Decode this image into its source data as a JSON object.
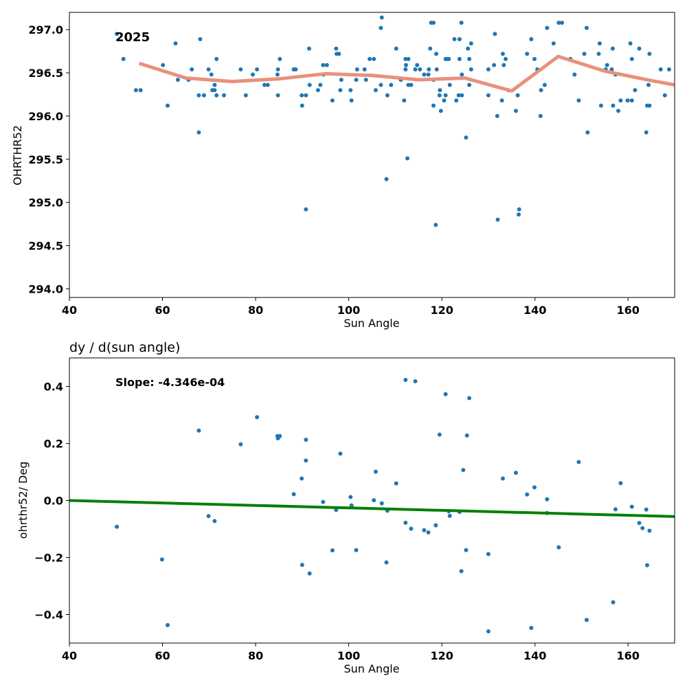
{
  "chart_data": [
    {
      "type": "scatter",
      "title": "",
      "annotation": "2025",
      "xlabel": "Sun Angle",
      "ylabel": "OHRTHR52",
      "xlim": [
        40,
        170
      ],
      "ylim": [
        293.9,
        297.2
      ],
      "xticks": [
        40,
        60,
        80,
        100,
        120,
        140,
        160
      ],
      "yticks": [
        294.0,
        294.5,
        295.0,
        295.5,
        296.0,
        296.5,
        297.0
      ],
      "grid": false,
      "series": [
        {
          "kind": "points",
          "color": "#1f77b4",
          "points": [
            [
              50.2,
              296.95
            ],
            [
              51.6,
              296.66
            ],
            [
              54.3,
              296.3
            ],
            [
              55.3,
              296.3
            ],
            [
              60.1,
              296.59
            ],
            [
              61.1,
              296.12
            ],
            [
              62.8,
              296.84
            ],
            [
              63.3,
              296.42
            ],
            [
              65.6,
              296.42
            ],
            [
              66.3,
              296.54
            ],
            [
              67.8,
              296.24
            ],
            [
              67.8,
              295.81
            ],
            [
              68.1,
              296.89
            ],
            [
              68.9,
              296.24
            ],
            [
              69.9,
              296.54
            ],
            [
              70.5,
              296.48
            ],
            [
              70.7,
              296.3
            ],
            [
              71.2,
              296.3
            ],
            [
              71.2,
              296.36
            ],
            [
              71.6,
              296.24
            ],
            [
              71.6,
              296.66
            ],
            [
              73.2,
              296.24
            ],
            [
              76.8,
              296.54
            ],
            [
              77.9,
              296.24
            ],
            [
              79.4,
              296.48
            ],
            [
              80.3,
              296.54
            ],
            [
              81.9,
              296.36
            ],
            [
              82.6,
              296.36
            ],
            [
              84.7,
              296.48
            ],
            [
              84.8,
              296.54
            ],
            [
              84.8,
              296.24
            ],
            [
              85.2,
              296.66
            ],
            [
              88.2,
              296.54
            ],
            [
              88.6,
              296.54
            ],
            [
              89.9,
              296.24
            ],
            [
              90.0,
              296.12
            ],
            [
              90.8,
              296.24
            ],
            [
              90.8,
              294.92
            ],
            [
              91.5,
              296.78
            ],
            [
              91.6,
              296.36
            ],
            [
              93.4,
              296.3
            ],
            [
              93.9,
              296.36
            ],
            [
              94.5,
              296.59
            ],
            [
              94.6,
              296.48
            ],
            [
              95.3,
              296.59
            ],
            [
              96.5,
              296.18
            ],
            [
              97.3,
              296.78
            ],
            [
              97.4,
              296.72
            ],
            [
              97.9,
              296.72
            ],
            [
              98.2,
              296.3
            ],
            [
              98.4,
              296.42
            ],
            [
              100.4,
              296.3
            ],
            [
              100.6,
              296.18
            ],
            [
              101.6,
              296.42
            ],
            [
              101.8,
              296.54
            ],
            [
              103.4,
              296.54
            ],
            [
              103.7,
              296.42
            ],
            [
              104.5,
              296.66
            ],
            [
              105.4,
              296.66
            ],
            [
              105.8,
              296.3
            ],
            [
              106.9,
              296.36
            ],
            [
              106.9,
              297.02
            ],
            [
              107.1,
              297.14
            ],
            [
              108.1,
              295.27
            ],
            [
              108.3,
              296.24
            ],
            [
              109.1,
              296.36
            ],
            [
              110.2,
              296.78
            ],
            [
              111.2,
              296.42
            ],
            [
              111.9,
              296.18
            ],
            [
              112.2,
              296.54
            ],
            [
              112.2,
              296.66
            ],
            [
              112.3,
              296.59
            ],
            [
              112.6,
              295.51
            ],
            [
              112.8,
              296.66
            ],
            [
              112.8,
              296.36
            ],
            [
              113.4,
              296.36
            ],
            [
              114.3,
              296.54
            ],
            [
              114.7,
              296.59
            ],
            [
              115.3,
              296.54
            ],
            [
              116.2,
              296.48
            ],
            [
              117.1,
              296.48
            ],
            [
              117.2,
              296.54
            ],
            [
              117.5,
              296.78
            ],
            [
              117.7,
              297.08
            ],
            [
              118.2,
              296.42
            ],
            [
              118.2,
              297.08
            ],
            [
              118.2,
              296.12
            ],
            [
              118.7,
              294.74
            ],
            [
              118.8,
              296.72
            ],
            [
              118.9,
              296.54
            ],
            [
              119.5,
              296.24
            ],
            [
              119.6,
              296.3
            ],
            [
              119.8,
              296.06
            ],
            [
              120.5,
              296.18
            ],
            [
              120.8,
              296.24
            ],
            [
              120.8,
              296.66
            ],
            [
              121.2,
              296.66
            ],
            [
              121.5,
              296.66
            ],
            [
              121.7,
              296.36
            ],
            [
              122.7,
              296.89
            ],
            [
              123.1,
              296.18
            ],
            [
              123.6,
              296.24
            ],
            [
              123.8,
              296.66
            ],
            [
              123.8,
              296.89
            ],
            [
              124.2,
              297.08
            ],
            [
              124.3,
              296.24
            ],
            [
              124.3,
              296.48
            ],
            [
              125.2,
              295.75
            ],
            [
              125.6,
              296.78
            ],
            [
              125.9,
              296.36
            ],
            [
              125.9,
              296.66
            ],
            [
              126.3,
              296.54
            ],
            [
              126.3,
              296.84
            ],
            [
              130.0,
              296.24
            ],
            [
              130.0,
              296.54
            ],
            [
              131.2,
              296.59
            ],
            [
              131.4,
              296.95
            ],
            [
              131.9,
              296.0
            ],
            [
              132.0,
              294.8
            ],
            [
              132.9,
              296.18
            ],
            [
              133.1,
              296.72
            ],
            [
              133.3,
              296.59
            ],
            [
              133.7,
              296.66
            ],
            [
              134.3,
              296.3
            ],
            [
              135.9,
              296.06
            ],
            [
              136.3,
              296.24
            ],
            [
              136.5,
              294.86
            ],
            [
              136.6,
              294.92
            ],
            [
              138.3,
              296.72
            ],
            [
              139.2,
              296.89
            ],
            [
              139.9,
              296.66
            ],
            [
              140.5,
              296.54
            ],
            [
              141.2,
              296.0
            ],
            [
              141.3,
              296.3
            ],
            [
              142.1,
              296.36
            ],
            [
              142.6,
              297.02
            ],
            [
              144.0,
              296.84
            ],
            [
              145.1,
              297.08
            ],
            [
              145.8,
              297.08
            ],
            [
              147.6,
              296.66
            ],
            [
              148.5,
              296.48
            ],
            [
              149.4,
              296.18
            ],
            [
              150.6,
              296.72
            ],
            [
              151.1,
              297.02
            ],
            [
              151.3,
              295.81
            ],
            [
              153.7,
              296.72
            ],
            [
              153.9,
              296.84
            ],
            [
              154.2,
              296.12
            ],
            [
              155.2,
              296.54
            ],
            [
              155.5,
              296.59
            ],
            [
              156.5,
              296.54
            ],
            [
              156.7,
              296.78
            ],
            [
              156.8,
              296.12
            ],
            [
              157.3,
              296.48
            ],
            [
              157.9,
              296.06
            ],
            [
              158.4,
              296.18
            ],
            [
              159.9,
              296.18
            ],
            [
              160.5,
              296.84
            ],
            [
              160.8,
              296.18
            ],
            [
              160.8,
              296.66
            ],
            [
              161.5,
              296.3
            ],
            [
              162.4,
              296.78
            ],
            [
              163.9,
              295.81
            ],
            [
              164.1,
              296.12
            ],
            [
              164.4,
              296.36
            ],
            [
              164.6,
              296.72
            ],
            [
              164.6,
              296.12
            ],
            [
              167.0,
              296.54
            ],
            [
              167.9,
              296.24
            ],
            [
              168.8,
              296.54
            ]
          ]
        },
        {
          "kind": "line",
          "color": "#e8917a",
          "points": [
            [
              55.0,
              296.61
            ],
            [
              65.0,
              296.44
            ],
            [
              75.0,
              296.4
            ],
            [
              85.0,
              296.43
            ],
            [
              95.0,
              296.49
            ],
            [
              105.0,
              296.47
            ],
            [
              115.0,
              296.42
            ],
            [
              125.0,
              296.44
            ],
            [
              135.0,
              296.29
            ],
            [
              145.0,
              296.69
            ],
            [
              155.0,
              296.52
            ],
            [
              165.0,
              296.41
            ],
            [
              170.0,
              296.36
            ]
          ]
        }
      ]
    },
    {
      "type": "scatter",
      "title": "dy / d(sun angle)",
      "annotation": "Slope: -4.346e-04",
      "xlabel": "Sun Angle",
      "ylabel": "ohrthr52/ Deg",
      "xlim": [
        40,
        170
      ],
      "ylim": [
        -0.5,
        0.5
      ],
      "xticks": [
        40,
        60,
        80,
        100,
        120,
        140,
        160
      ],
      "yticks": [
        -0.4,
        -0.2,
        0.0,
        0.2,
        0.4
      ],
      "grid": false,
      "series": [
        {
          "kind": "points",
          "color": "#1f77b4",
          "points": [
            [
              50.2,
              -0.092
            ],
            [
              59.9,
              -0.207
            ],
            [
              61.1,
              -0.437
            ],
            [
              67.8,
              0.245
            ],
            [
              69.9,
              -0.055
            ],
            [
              71.2,
              -0.072
            ],
            [
              76.8,
              0.197
            ],
            [
              80.3,
              0.292
            ],
            [
              84.7,
              0.226
            ],
            [
              84.8,
              0.218
            ],
            [
              85.2,
              0.226
            ],
            [
              88.2,
              0.022
            ],
            [
              89.9,
              0.077
            ],
            [
              90.0,
              -0.226
            ],
            [
              90.8,
              0.213
            ],
            [
              90.8,
              0.14
            ],
            [
              91.6,
              -0.256
            ],
            [
              94.5,
              -0.005
            ],
            [
              96.5,
              -0.175
            ],
            [
              97.3,
              -0.033
            ],
            [
              98.2,
              0.164
            ],
            [
              100.4,
              0.012
            ],
            [
              100.6,
              -0.017
            ],
            [
              101.6,
              -0.174
            ],
            [
              105.4,
              0.001
            ],
            [
              105.8,
              0.101
            ],
            [
              107.1,
              -0.01
            ],
            [
              108.1,
              -0.217
            ],
            [
              108.3,
              -0.036
            ],
            [
              110.2,
              0.06
            ],
            [
              112.2,
              -0.078
            ],
            [
              112.2,
              0.423
            ],
            [
              113.4,
              -0.099
            ],
            [
              114.3,
              0.418
            ],
            [
              116.2,
              -0.104
            ],
            [
              117.1,
              -0.112
            ],
            [
              118.7,
              -0.087
            ],
            [
              119.5,
              0.231
            ],
            [
              120.8,
              0.373
            ],
            [
              121.5,
              -0.038
            ],
            [
              121.7,
              -0.054
            ],
            [
              123.8,
              -0.04
            ],
            [
              124.2,
              -0.248
            ],
            [
              124.6,
              0.107
            ],
            [
              125.2,
              -0.174
            ],
            [
              125.4,
              0.228
            ],
            [
              125.9,
              0.359
            ],
            [
              130.0,
              -0.188
            ],
            [
              130.0,
              -0.459
            ],
            [
              133.1,
              0.077
            ],
            [
              135.9,
              0.097
            ],
            [
              138.3,
              0.021
            ],
            [
              139.2,
              -0.447
            ],
            [
              139.9,
              0.046
            ],
            [
              142.6,
              -0.044
            ],
            [
              142.6,
              0.004
            ],
            [
              145.1,
              -0.164
            ],
            [
              149.4,
              0.135
            ],
            [
              151.1,
              -0.419
            ],
            [
              156.8,
              -0.357
            ],
            [
              157.3,
              -0.031
            ],
            [
              158.4,
              0.061
            ],
            [
              160.8,
              -0.022
            ],
            [
              162.4,
              -0.079
            ],
            [
              163.9,
              -0.032
            ],
            [
              164.1,
              -0.227
            ],
            [
              164.6,
              -0.106
            ],
            [
              163.1,
              -0.097
            ]
          ]
        },
        {
          "kind": "line",
          "color": "#008000",
          "points": [
            [
              40,
              0.0
            ],
            [
              170,
              -0.0565
            ]
          ]
        }
      ]
    }
  ]
}
